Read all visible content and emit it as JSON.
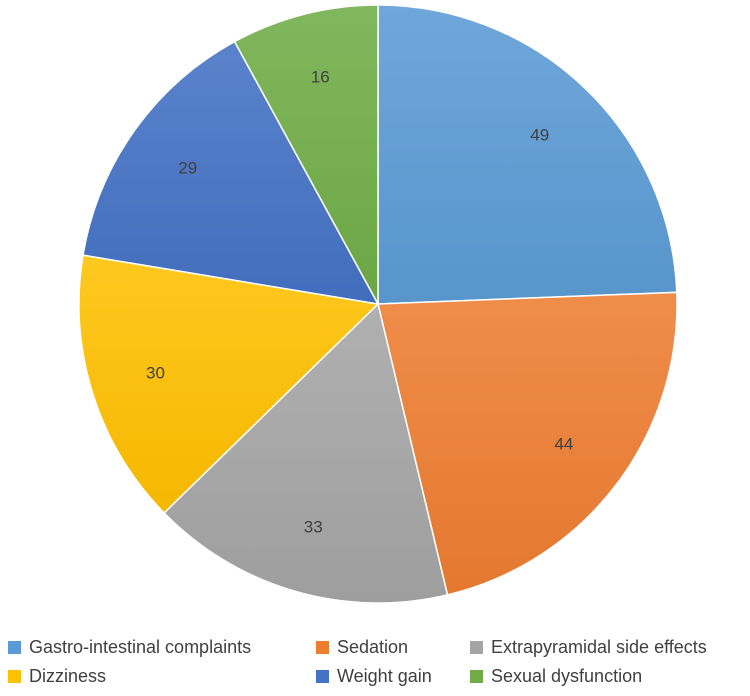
{
  "chart_data": {
    "type": "pie",
    "categories": [
      "Gastro-intestinal complaints",
      "Sedation",
      "Extrapyramidal side effects",
      "Dizziness",
      "Weight gain",
      "Sexual dysfunction"
    ],
    "values": [
      49,
      44,
      33,
      30,
      29,
      16
    ],
    "colors": [
      "#5B9BD5",
      "#ED7D31",
      "#A5A5A5",
      "#FFC000",
      "#4472C4",
      "#70AD47"
    ],
    "data_labels": [
      "49",
      "44",
      "33",
      "30",
      "29",
      "16"
    ],
    "start_angle_deg": 0,
    "direction": "clockwise",
    "legend_position": "bottom"
  }
}
